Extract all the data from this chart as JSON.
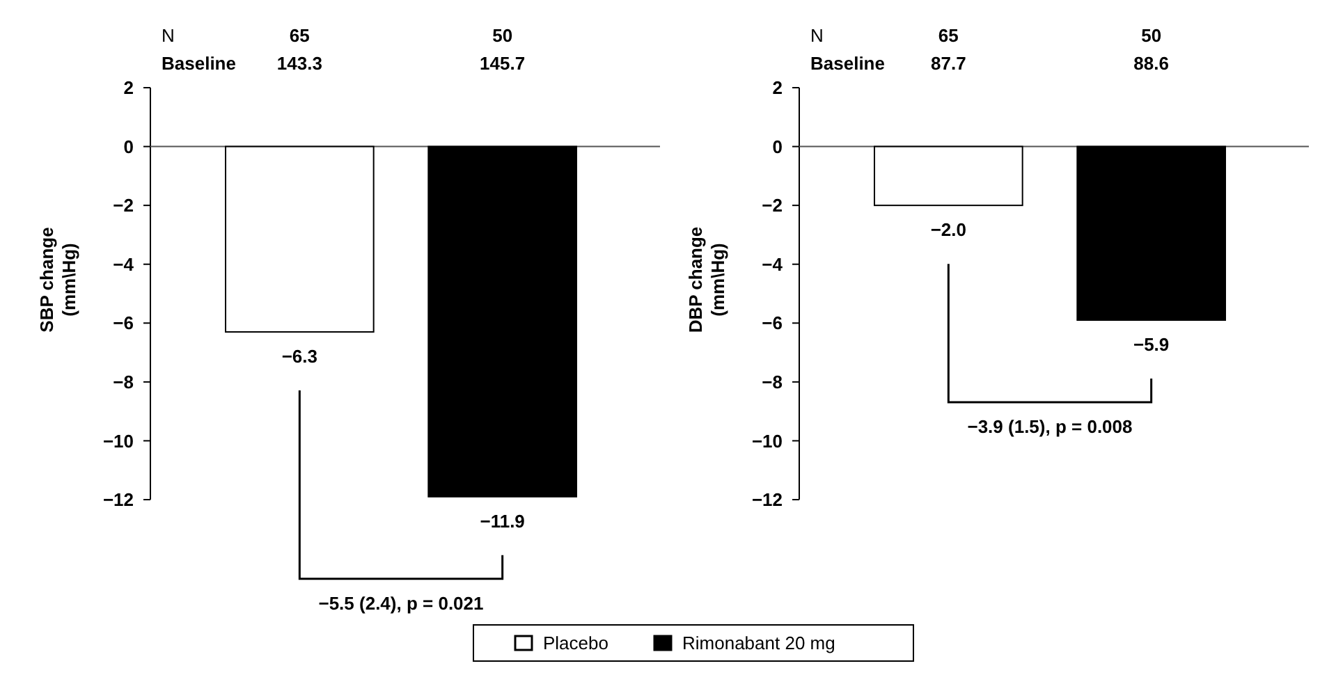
{
  "chart_data": [
    {
      "type": "bar",
      "ylabel": "SBP change\n(mm\\Hg)",
      "categories": [
        null
      ],
      "ylim": [
        -12,
        2
      ],
      "yticks": [
        {
          "value": -12,
          "label": "−12"
        },
        {
          "value": -10,
          "label": "−10"
        },
        {
          "value": -8,
          "label": "−8"
        },
        {
          "value": -6,
          "label": "−6"
        },
        {
          "value": -4,
          "label": "−4"
        },
        {
          "value": -2,
          "label": "−2"
        },
        {
          "value": 0,
          "label": "0"
        },
        {
          "value": 2,
          "label": "2"
        }
      ],
      "legend": "bottom",
      "series": [
        {
          "name": "Placebo",
          "color": "#ffffff",
          "values": [
            -6.3
          ],
          "value_labels": [
            "−6.3"
          ]
        },
        {
          "name": "Rimonabant 20 mg",
          "color": "#000000",
          "values": [
            -11.9
          ],
          "value_labels": [
            "−11.9"
          ]
        }
      ],
      "annotations": [
        "N",
        "Baseline",
        "65",
        "143.3",
        "50",
        "145.7",
        "−5.5 (2.4), p = 0.021"
      ]
    },
    {
      "type": "bar",
      "ylabel": "DBP change\n(mm\\Hg)",
      "categories": [
        null
      ],
      "ylim": [
        -12,
        2
      ],
      "yticks": [
        {
          "value": -12,
          "label": "−12"
        },
        {
          "value": -10,
          "label": "−10"
        },
        {
          "value": -8,
          "label": "−8"
        },
        {
          "value": -6,
          "label": "−6"
        },
        {
          "value": -4,
          "label": "−4"
        },
        {
          "value": -2,
          "label": "−2"
        },
        {
          "value": 0,
          "label": "0"
        },
        {
          "value": 2,
          "label": "2"
        }
      ],
      "series": [
        {
          "color": "#ffffff",
          "values": [
            -2.0
          ],
          "value_labels": [
            "−2.0"
          ]
        },
        {
          "color": "#000000",
          "values": [
            -5.9
          ],
          "value_labels": [
            "−5.9"
          ]
        }
      ],
      "annotations": [
        "N",
        "Baseline",
        "65",
        "87.7",
        "50",
        "88.6",
        "−3.9 (1.5), p = 0.008"
      ]
    }
  ]
}
